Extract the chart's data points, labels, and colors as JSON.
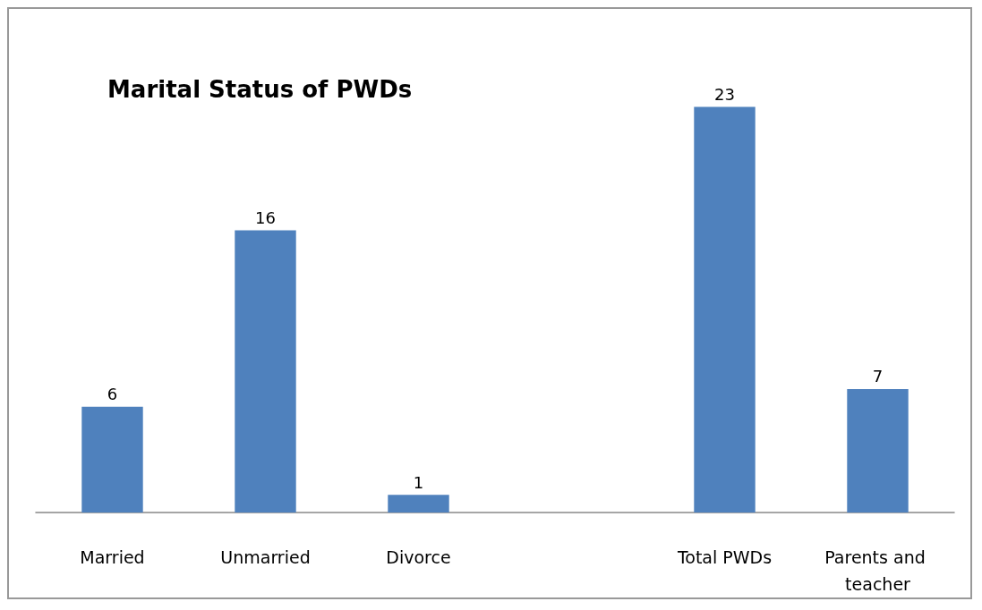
{
  "chart_data": {
    "type": "bar",
    "title": "Marital Status of PWDs",
    "categories": [
      "Married",
      "Unmarried",
      "Divorce",
      null,
      "Total PWDs",
      "Parents and teacher"
    ],
    "values": [
      6,
      16,
      1,
      null,
      23,
      7
    ],
    "color": "#4f81bd",
    "data_labels": true
  }
}
